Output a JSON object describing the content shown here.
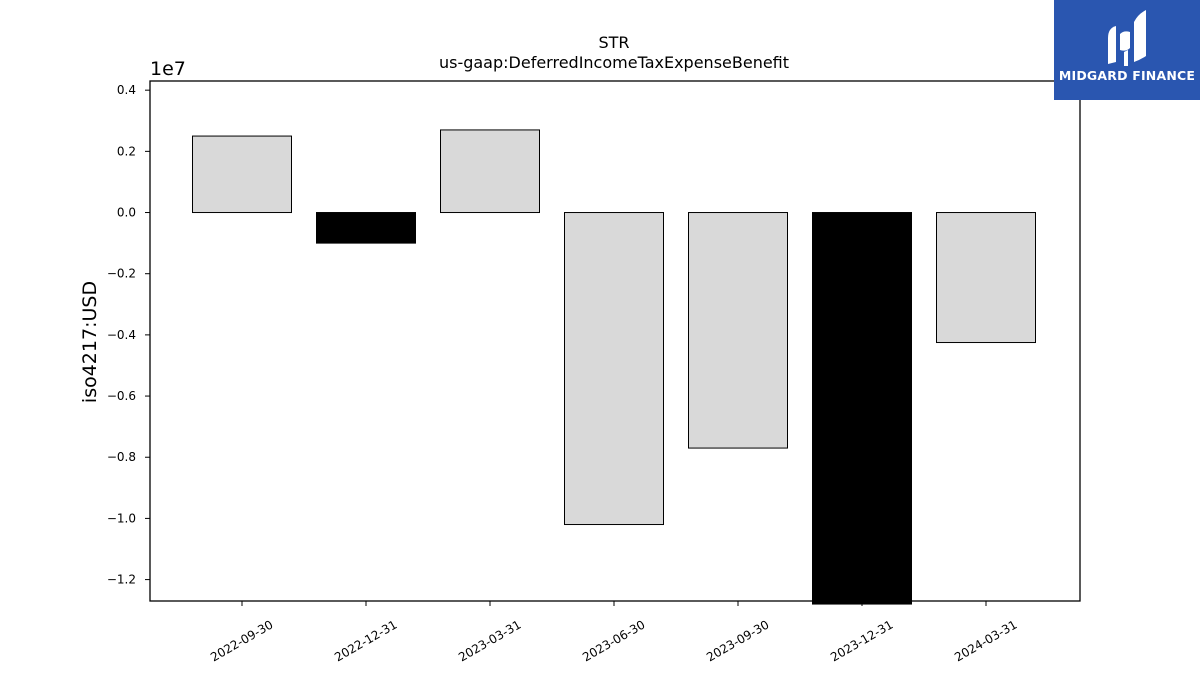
{
  "logo": {
    "text": "MIDGARD FINANCE",
    "bg_color": "#2a56b0"
  },
  "chart_data": {
    "type": "bar",
    "title": "STR",
    "subtitle": "us-gaap:DeferredIncomeTaxExpenseBenefit",
    "xlabel": "",
    "ylabel": "iso4217:USD",
    "offset_label": "1e7",
    "categories": [
      "2022-09-30",
      "2022-12-31",
      "2023-03-31",
      "2023-06-30",
      "2023-09-30",
      "2023-12-31",
      "2024-03-31"
    ],
    "values": [
      2500000,
      -1000000,
      2700000,
      -10200000,
      -7700000,
      -12800000,
      -4250000
    ],
    "bar_colors": [
      "#d9d9d9",
      "#000000",
      "#d9d9d9",
      "#d9d9d9",
      "#d9d9d9",
      "#000000",
      "#d9d9d9"
    ],
    "ylim": [
      -12700000,
      4300000
    ],
    "yticks": [
      -12000000,
      -10000000,
      -8000000,
      -6000000,
      -4000000,
      -2000000,
      0,
      2000000,
      4000000
    ],
    "ytick_labels": [
      "−1.2",
      "−1.0",
      "−0.8",
      "−0.6",
      "−0.4",
      "−0.2",
      "0.0",
      "0.2",
      "0.4"
    ],
    "grid": false,
    "legend": "none"
  }
}
